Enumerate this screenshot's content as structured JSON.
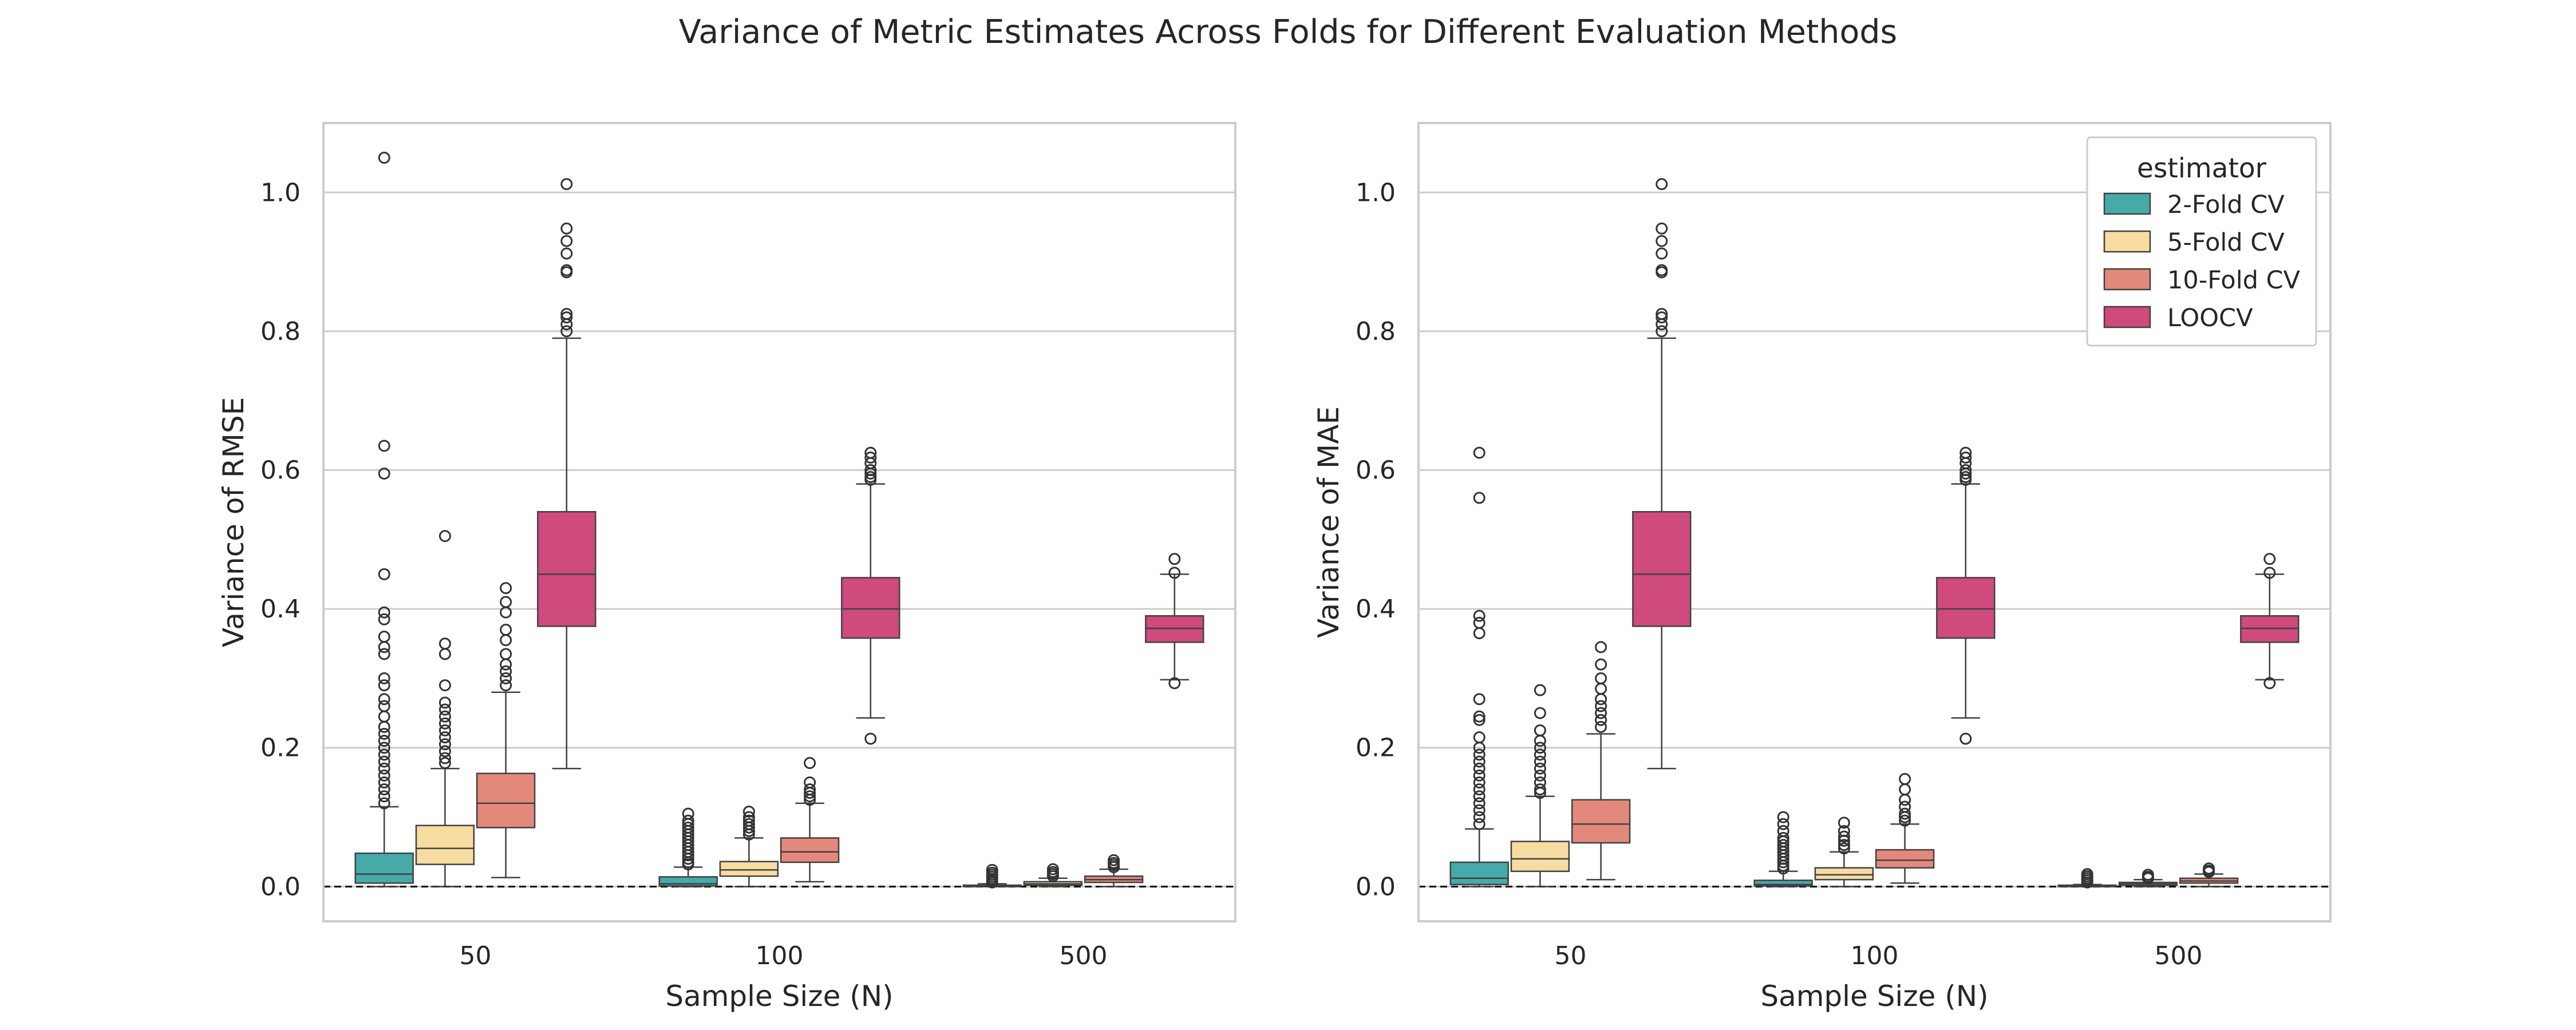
{
  "figure_title": "Variance of Metric Estimates Across Folds for Different Evaluation Methods",
  "colors": {
    "2-Fold CV": "#46aaa8",
    "5-Fold CV": "#f7dca2",
    "10-Fold CV": "#e3897c",
    "LOOCV": "#cf4a7d"
  },
  "legend": {
    "title": "estimator",
    "placement": "top-right of second panel",
    "entries": [
      "2-Fold CV",
      "5-Fold CV",
      "10-Fold CV",
      "LOOCV"
    ]
  },
  "chart_data": [
    {
      "type": "boxplot",
      "title": "",
      "xlabel": "Sample Size (N)",
      "ylabel": "Variance of RMSE",
      "categories": [
        "50",
        "100",
        "500"
      ],
      "ylim": [
        -0.05,
        1.1
      ],
      "yticks": [
        0.0,
        0.2,
        0.4,
        0.6,
        0.8,
        1.0
      ],
      "ytick_labels": [
        "0.0",
        "0.2",
        "0.4",
        "0.6",
        "0.8",
        "1.0"
      ],
      "grid": "horizontal",
      "reference_line": {
        "y": 0,
        "style": "dashed"
      },
      "series": [
        {
          "name": "2-Fold CV",
          "boxes": [
            {
              "lo": 0.0,
              "q1": 0.005,
              "med": 0.018,
              "q3": 0.048,
              "hi": 0.115,
              "outliers": [
                1.05,
                0.635,
                0.595,
                0.45,
                0.395,
                0.385,
                0.36,
                0.345,
                0.335,
                0.3,
                0.29,
                0.27,
                0.26,
                0.245,
                0.23,
                0.22,
                0.21,
                0.2,
                0.19,
                0.18,
                0.17,
                0.16,
                0.15,
                0.14,
                0.13,
                0.12
              ]
            },
            {
              "lo": 0.0,
              "q1": 0.001,
              "med": 0.004,
              "q3": 0.014,
              "hi": 0.028,
              "outliers": [
                0.105,
                0.095,
                0.09,
                0.085,
                0.08,
                0.075,
                0.07,
                0.065,
                0.06,
                0.055,
                0.05,
                0.045,
                0.04,
                0.035,
                0.032
              ]
            },
            {
              "lo": 0.0,
              "q1": 0.0,
              "med": 0.001,
              "q3": 0.002,
              "hi": 0.004,
              "outliers": [
                0.024,
                0.02,
                0.017,
                0.014,
                0.011,
                0.008,
                0.006
              ]
            }
          ]
        },
        {
          "name": "5-Fold CV",
          "boxes": [
            {
              "lo": 0.0,
              "q1": 0.032,
              "med": 0.055,
              "q3": 0.088,
              "hi": 0.17,
              "outliers": [
                0.505,
                0.35,
                0.335,
                0.29,
                0.265,
                0.255,
                0.245,
                0.235,
                0.225,
                0.215,
                0.205,
                0.195,
                0.185,
                0.178
              ]
            },
            {
              "lo": 0.0,
              "q1": 0.015,
              "med": 0.024,
              "q3": 0.036,
              "hi": 0.07,
              "outliers": [
                0.108,
                0.1,
                0.095,
                0.09,
                0.085,
                0.08,
                0.075
              ]
            },
            {
              "lo": 0.0,
              "q1": 0.002,
              "med": 0.004,
              "q3": 0.007,
              "hi": 0.012,
              "outliers": [
                0.025,
                0.021,
                0.018,
                0.015
              ]
            }
          ]
        },
        {
          "name": "10-Fold CV",
          "boxes": [
            {
              "lo": 0.013,
              "q1": 0.085,
              "med": 0.12,
              "q3": 0.163,
              "hi": 0.28,
              "outliers": [
                0.43,
                0.41,
                0.395,
                0.37,
                0.355,
                0.335,
                0.32,
                0.31,
                0.3,
                0.29
              ]
            },
            {
              "lo": 0.007,
              "q1": 0.035,
              "med": 0.05,
              "q3": 0.07,
              "hi": 0.12,
              "outliers": [
                0.178,
                0.15,
                0.14,
                0.135,
                0.13,
                0.125
              ]
            },
            {
              "lo": 0.0,
              "q1": 0.006,
              "med": 0.01,
              "q3": 0.015,
              "hi": 0.025,
              "outliers": [
                0.038,
                0.034,
                0.031,
                0.028
              ]
            }
          ]
        },
        {
          "name": "LOOCV",
          "boxes": [
            {
              "lo": 0.17,
              "q1": 0.375,
              "med": 0.45,
              "q3": 0.54,
              "hi": 0.79,
              "outliers": [
                1.012,
                0.948,
                0.93,
                0.912,
                0.888,
                0.885,
                0.825,
                0.82,
                0.81,
                0.8
              ]
            },
            {
              "lo": 0.243,
              "q1": 0.358,
              "med": 0.4,
              "q3": 0.445,
              "hi": 0.58,
              "outliers": [
                0.625,
                0.618,
                0.61,
                0.6,
                0.595,
                0.59,
                0.586,
                0.213
              ]
            },
            {
              "lo": 0.298,
              "q1": 0.352,
              "med": 0.372,
              "q3": 0.39,
              "hi": 0.45,
              "outliers": [
                0.472,
                0.452,
                0.293
              ]
            }
          ]
        }
      ]
    },
    {
      "type": "boxplot",
      "title": "",
      "xlabel": "Sample Size (N)",
      "ylabel": "Variance of MAE",
      "categories": [
        "50",
        "100",
        "500"
      ],
      "ylim": [
        -0.05,
        1.1
      ],
      "yticks": [
        0.0,
        0.2,
        0.4,
        0.6,
        0.8,
        1.0
      ],
      "ytick_labels": [
        "0.0",
        "0.2",
        "0.4",
        "0.6",
        "0.8",
        "1.0"
      ],
      "grid": "horizontal",
      "reference_line": {
        "y": 0,
        "style": "dashed"
      },
      "series": [
        {
          "name": "2-Fold CV",
          "boxes": [
            {
              "lo": 0.0,
              "q1": 0.003,
              "med": 0.012,
              "q3": 0.035,
              "hi": 0.083,
              "outliers": [
                0.625,
                0.56,
                0.39,
                0.38,
                0.365,
                0.27,
                0.245,
                0.24,
                0.215,
                0.2,
                0.19,
                0.18,
                0.17,
                0.16,
                0.15,
                0.14,
                0.13,
                0.12,
                0.11,
                0.1,
                0.09
              ]
            },
            {
              "lo": 0.0,
              "q1": 0.001,
              "med": 0.003,
              "q3": 0.009,
              "hi": 0.022,
              "outliers": [
                0.1,
                0.09,
                0.08,
                0.07,
                0.065,
                0.06,
                0.055,
                0.05,
                0.045,
                0.04,
                0.035,
                0.03,
                0.026
              ]
            },
            {
              "lo": 0.0,
              "q1": 0.0,
              "med": 0.001,
              "q3": 0.002,
              "hi": 0.003,
              "outliers": [
                0.018,
                0.015,
                0.012,
                0.009,
                0.006
              ]
            }
          ]
        },
        {
          "name": "5-Fold CV",
          "boxes": [
            {
              "lo": 0.0,
              "q1": 0.022,
              "med": 0.04,
              "q3": 0.065,
              "hi": 0.13,
              "outliers": [
                0.283,
                0.25,
                0.225,
                0.21,
                0.2,
                0.19,
                0.18,
                0.17,
                0.16,
                0.15,
                0.14,
                0.135
              ]
            },
            {
              "lo": 0.0,
              "q1": 0.01,
              "med": 0.017,
              "q3": 0.027,
              "hi": 0.05,
              "outliers": [
                0.092,
                0.08,
                0.072,
                0.066,
                0.06,
                0.055
              ]
            },
            {
              "lo": 0.0,
              "q1": 0.002,
              "med": 0.004,
              "q3": 0.006,
              "hi": 0.01,
              "outliers": [
                0.017,
                0.014,
                0.012
              ]
            }
          ]
        },
        {
          "name": "10-Fold CV",
          "boxes": [
            {
              "lo": 0.01,
              "q1": 0.063,
              "med": 0.09,
              "q3": 0.125,
              "hi": 0.22,
              "outliers": [
                0.345,
                0.32,
                0.3,
                0.285,
                0.27,
                0.26,
                0.25,
                0.24,
                0.23
              ]
            },
            {
              "lo": 0.005,
              "q1": 0.027,
              "med": 0.038,
              "q3": 0.053,
              "hi": 0.09,
              "outliers": [
                0.155,
                0.14,
                0.125,
                0.115,
                0.105,
                0.1,
                0.095
              ]
            },
            {
              "lo": 0.0,
              "q1": 0.005,
              "med": 0.008,
              "q3": 0.012,
              "hi": 0.018,
              "outliers": [
                0.026,
                0.023,
                0.021
              ]
            }
          ]
        },
        {
          "name": "LOOCV",
          "boxes": [
            {
              "lo": 0.17,
              "q1": 0.375,
              "med": 0.45,
              "q3": 0.54,
              "hi": 0.79,
              "outliers": [
                1.012,
                0.948,
                0.93,
                0.912,
                0.888,
                0.885,
                0.825,
                0.82,
                0.81,
                0.8
              ]
            },
            {
              "lo": 0.243,
              "q1": 0.358,
              "med": 0.4,
              "q3": 0.445,
              "hi": 0.58,
              "outliers": [
                0.625,
                0.618,
                0.61,
                0.6,
                0.595,
                0.59,
                0.586,
                0.213
              ]
            },
            {
              "lo": 0.298,
              "q1": 0.352,
              "med": 0.372,
              "q3": 0.39,
              "hi": 0.45,
              "outliers": [
                0.472,
                0.452,
                0.293
              ]
            }
          ]
        }
      ]
    }
  ]
}
